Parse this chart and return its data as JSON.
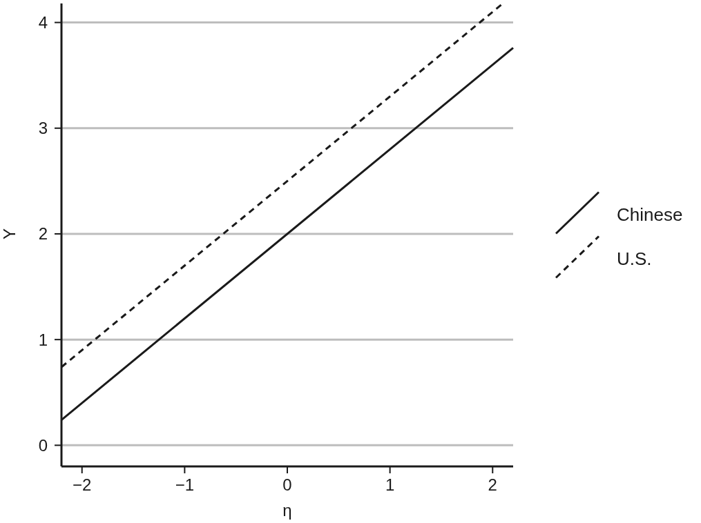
{
  "chart_data": {
    "type": "line",
    "xlabel": "η",
    "ylabel": "Y",
    "xlim": [
      -2.2,
      2.2
    ],
    "ylim": [
      -0.2,
      4.18
    ],
    "xticks": [
      {
        "value": -2,
        "label": "−2"
      },
      {
        "value": -1,
        "label": "−1"
      },
      0,
      1,
      2
    ],
    "yticks": [
      0,
      1,
      2,
      3,
      4
    ],
    "grid": "y",
    "legend": "right",
    "marker": "none",
    "series": [
      {
        "name": "Chinese",
        "color": "#1a1a1a",
        "line_style": "solid",
        "x": [
          -2.2,
          2.2
        ],
        "values": [
          0.24,
          3.76
        ]
      },
      {
        "name": "U.S.",
        "color": "#1a1a1a",
        "line_style": "dashed",
        "x": [
          -2.2,
          2.1
        ],
        "values": [
          0.74,
          4.18
        ]
      }
    ]
  }
}
